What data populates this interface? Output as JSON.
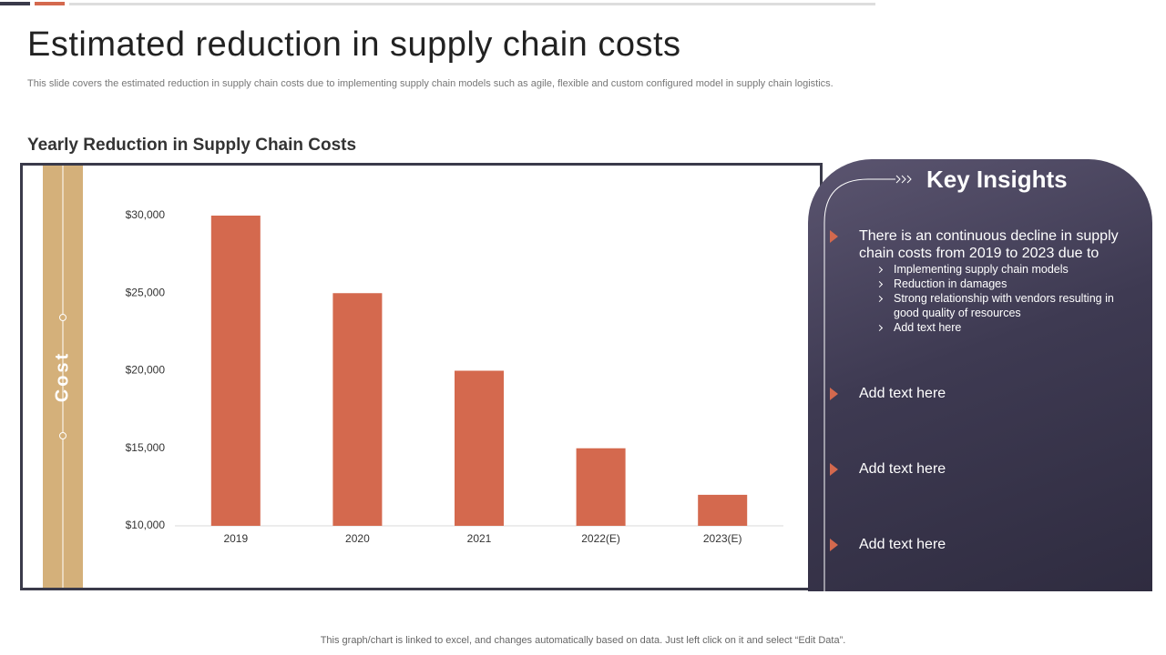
{
  "header": {
    "title": "Estimated reduction in supply chain costs",
    "subtitle": "This slide covers the estimated reduction in supply chain costs due to implementing supply chain models such as agile, flexible and custom configured model in supply chain logistics."
  },
  "chart_data": {
    "type": "bar",
    "title": "Yearly Reduction in Supply Chain Costs",
    "y_label": "Cost",
    "categories": [
      "2019",
      "2020",
      "2021",
      "2022(E)",
      "2023(E)"
    ],
    "values": [
      30000,
      25000,
      20000,
      15000,
      12000
    ],
    "color": "#d4694e",
    "ylim": [
      10000,
      30000
    ],
    "yticks": [
      {
        "value": 10000,
        "label": "$10,000"
      },
      {
        "value": 15000,
        "label": "$15,000"
      },
      {
        "value": 20000,
        "label": "$20,000"
      },
      {
        "value": 25000,
        "label": "$25,000"
      },
      {
        "value": 30000,
        "label": "$30,000"
      }
    ]
  },
  "insights": {
    "title": "Key Insights",
    "items": [
      {
        "text": "There is an continuous  decline in supply chain costs from 2019 to 2023 due to",
        "subitems": [
          "Implementing supply chain models",
          "Reduction in damages",
          "Strong relationship with vendors  resulting in good quality of resources",
          "Add text here"
        ]
      },
      {
        "text": "Add text here"
      },
      {
        "text": "Add text here"
      },
      {
        "text": "Add text here"
      }
    ]
  },
  "footer": "This graph/chart is linked to excel,  and changes automatically based on data. Just left click on it and select “Edit Data”."
}
